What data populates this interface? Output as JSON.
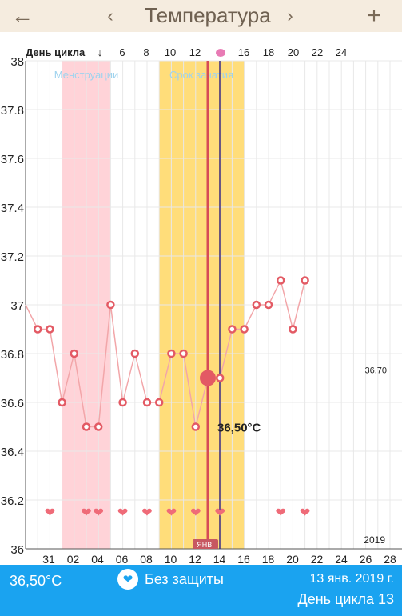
{
  "header": {
    "title": "Температура",
    "back_glyph": "←",
    "prev_glyph": "‹",
    "next_glyph": "›",
    "add_glyph": "+"
  },
  "cycle_header": {
    "label": "День цикла",
    "ticks": [
      "6",
      "8",
      "10",
      "12",
      "16",
      "18",
      "20",
      "22",
      "24"
    ]
  },
  "footer": {
    "temperature": "36,50°C",
    "protection": "Без защиты",
    "date": "13 янв. 2019 г.",
    "cycle_day": "День цикла 13"
  },
  "chart_data": {
    "type": "line",
    "y_ticks": [
      "38",
      "37.8",
      "37.6",
      "37.4",
      "37.2",
      "37",
      "36.8",
      "36.6",
      "36.4",
      "36.2",
      "36"
    ],
    "ylim": [
      36,
      38
    ],
    "x_labels": [
      "31",
      "02",
      "04",
      "06",
      "08",
      "10",
      "12",
      "14",
      "16",
      "18",
      "20",
      "22",
      "24",
      "26",
      "28"
    ],
    "bands": [
      {
        "name": "Менструации",
        "color": "#ffd3d8",
        "label_color": "#9fd3ee"
      },
      {
        "name": "Срок зачатия",
        "color": "#ffdd7a",
        "label_color": "#9fd3ee"
      }
    ],
    "coverline": {
      "label": "36,70",
      "value": 36.7
    },
    "year_label": "2019",
    "month_marker": "ЯНВ.",
    "series": [
      {
        "values": [
          36.9,
          36.9,
          36.6,
          36.8,
          36.5,
          36.5,
          37.0,
          36.6,
          36.8,
          36.6,
          36.6,
          36.8,
          36.8,
          36.5,
          36.7,
          36.7,
          36.9,
          36.9,
          37.0,
          37.0,
          37.1,
          36.9,
          37.1
        ]
      }
    ],
    "selected_value_label": "36,50°C",
    "hearts": [
      2,
      5,
      6,
      8,
      10,
      12,
      14,
      16,
      21,
      23
    ]
  },
  "colors": {
    "line": "#f2a6a9",
    "marker": "#e35a64",
    "selected_line": "#d64b56",
    "cursor_line": "#3b2a7a",
    "accent": "#1aa3f0"
  }
}
